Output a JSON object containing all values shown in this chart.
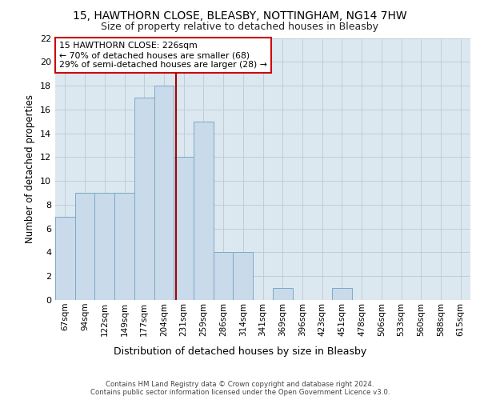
{
  "title_line1": "15, HAWTHORN CLOSE, BLEASBY, NOTTINGHAM, NG14 7HW",
  "title_line2": "Size of property relative to detached houses in Bleasby",
  "xlabel": "Distribution of detached houses by size in Bleasby",
  "ylabel": "Number of detached properties",
  "bin_labels": [
    "67sqm",
    "94sqm",
    "122sqm",
    "149sqm",
    "177sqm",
    "204sqm",
    "231sqm",
    "259sqm",
    "286sqm",
    "314sqm",
    "341sqm",
    "369sqm",
    "396sqm",
    "423sqm",
    "451sqm",
    "478sqm",
    "506sqm",
    "533sqm",
    "560sqm",
    "588sqm",
    "615sqm"
  ],
  "bar_values": [
    7,
    9,
    9,
    9,
    17,
    18,
    12,
    15,
    4,
    4,
    0,
    1,
    0,
    0,
    1,
    0,
    0,
    0,
    0,
    0,
    0
  ],
  "bar_color": "#c9daea",
  "bar_edgecolor": "#7aaac8",
  "vline_x": 5.62,
  "vline_color": "#aa0000",
  "annotation_text": "15 HAWTHORN CLOSE: 226sqm\n← 70% of detached houses are smaller (68)\n29% of semi-detached houses are larger (28) →",
  "annotation_box_color": "#ffffff",
  "annotation_box_edgecolor": "#cc0000",
  "ylim": [
    0,
    22
  ],
  "yticks": [
    0,
    2,
    4,
    6,
    8,
    10,
    12,
    14,
    16,
    18,
    20,
    22
  ],
  "footer_text": "Contains HM Land Registry data © Crown copyright and database right 2024.\nContains public sector information licensed under the Open Government Licence v3.0.",
  "bg_color": "#dce8f0",
  "plot_bg_color": "#dce8f0",
  "title1_fontsize": 10,
  "title2_fontsize": 9
}
